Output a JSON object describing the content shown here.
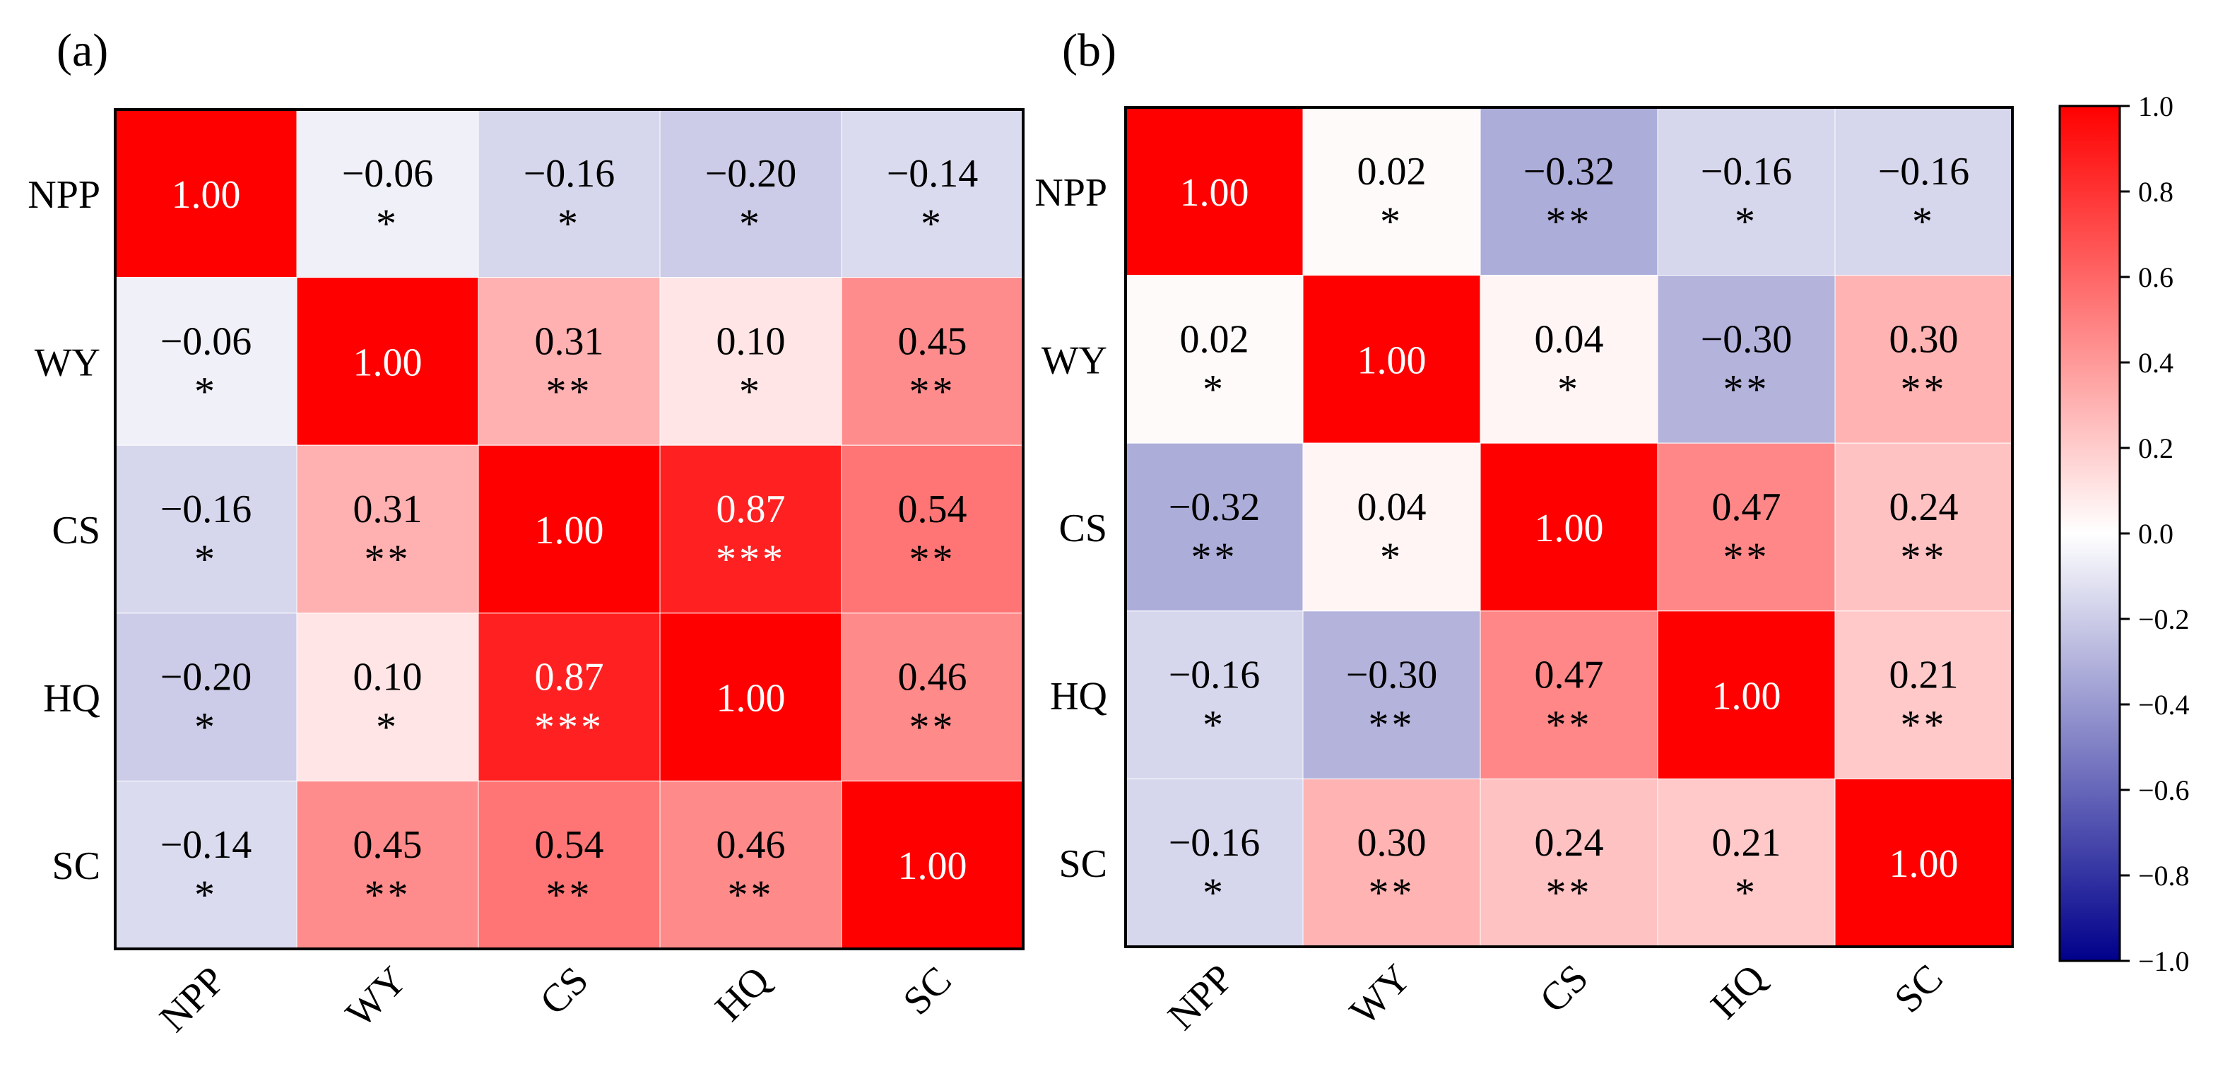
{
  "chart_data": [
    {
      "type": "heatmap",
      "panel_label": "(a)",
      "row_labels": [
        "NPP",
        "WY",
        "CS",
        "HQ",
        "SC"
      ],
      "col_labels": [
        "NPP",
        "WY",
        "CS",
        "HQ",
        "SC"
      ],
      "values": [
        [
          1.0,
          -0.06,
          -0.16,
          -0.2,
          -0.14
        ],
        [
          -0.06,
          1.0,
          0.31,
          0.1,
          0.45
        ],
        [
          -0.16,
          0.31,
          1.0,
          0.87,
          0.54
        ],
        [
          -0.2,
          0.1,
          0.87,
          1.0,
          0.46
        ],
        [
          -0.14,
          0.45,
          0.54,
          0.46,
          1.0
        ]
      ],
      "labels": [
        [
          "1.00",
          "−0.06",
          "−0.16",
          "−0.20",
          "−0.14"
        ],
        [
          "−0.06",
          "1.00",
          "0.31",
          "0.10",
          "0.45"
        ],
        [
          "−0.16",
          "0.31",
          "1.00",
          "0.87",
          "0.54"
        ],
        [
          "−0.20",
          "0.10",
          "0.87",
          "1.00",
          "0.46"
        ],
        [
          "−0.14",
          "0.45",
          "0.54",
          "0.46",
          "1.00"
        ]
      ],
      "significance": [
        [
          "",
          "*",
          "*",
          "*",
          "*"
        ],
        [
          "*",
          "",
          "**",
          "*",
          "**"
        ],
        [
          "*",
          "**",
          "",
          "***",
          "**"
        ],
        [
          "*",
          "*",
          "***",
          "",
          "**"
        ],
        [
          "*",
          "**",
          "**",
          "**",
          ""
        ]
      ]
    },
    {
      "type": "heatmap",
      "panel_label": "(b)",
      "row_labels": [
        "NPP",
        "WY",
        "CS",
        "HQ",
        "SC"
      ],
      "col_labels": [
        "NPP",
        "WY",
        "CS",
        "HQ",
        "SC"
      ],
      "values": [
        [
          1.0,
          0.02,
          -0.32,
          -0.16,
          -0.16
        ],
        [
          0.02,
          1.0,
          0.04,
          -0.3,
          0.3
        ],
        [
          -0.32,
          0.04,
          1.0,
          0.47,
          0.24
        ],
        [
          -0.16,
          -0.3,
          0.47,
          1.0,
          0.21
        ],
        [
          -0.16,
          0.3,
          0.24,
          0.21,
          1.0
        ]
      ],
      "labels": [
        [
          "1.00",
          "0.02",
          "−0.32",
          "−0.16",
          "−0.16"
        ],
        [
          "0.02",
          "1.00",
          "0.04",
          "−0.30",
          "0.30"
        ],
        [
          "−0.32",
          "0.04",
          "1.00",
          "0.47",
          "0.24"
        ],
        [
          "−0.16",
          "−0.30",
          "0.47",
          "1.00",
          "0.21"
        ],
        [
          "−0.16",
          "0.30",
          "0.24",
          "0.21",
          "1.00"
        ]
      ],
      "significance": [
        [
          "",
          "*",
          "**",
          "*",
          "*"
        ],
        [
          "*",
          "",
          "*",
          "**",
          "**"
        ],
        [
          "**",
          "*",
          "",
          "**",
          "**"
        ],
        [
          "*",
          "**",
          "**",
          "",
          "**"
        ],
        [
          "*",
          "**",
          "**",
          "*",
          ""
        ]
      ]
    }
  ],
  "colorbar": {
    "range": [
      -1.0,
      1.0
    ],
    "ticks": [
      1.0,
      0.8,
      0.6,
      0.4,
      0.2,
      0.0,
      -0.2,
      -0.4,
      -0.6,
      -0.8,
      -1.0
    ],
    "tick_labels": [
      "1.0",
      "0.8",
      "0.6",
      "0.4",
      "0.2",
      "0.0",
      "−0.2",
      "−0.4",
      "−0.6",
      "−0.8",
      "−1.0"
    ],
    "colors": {
      "low": "#00008b",
      "mid": "#ffffff",
      "high": "#ff0000"
    }
  }
}
